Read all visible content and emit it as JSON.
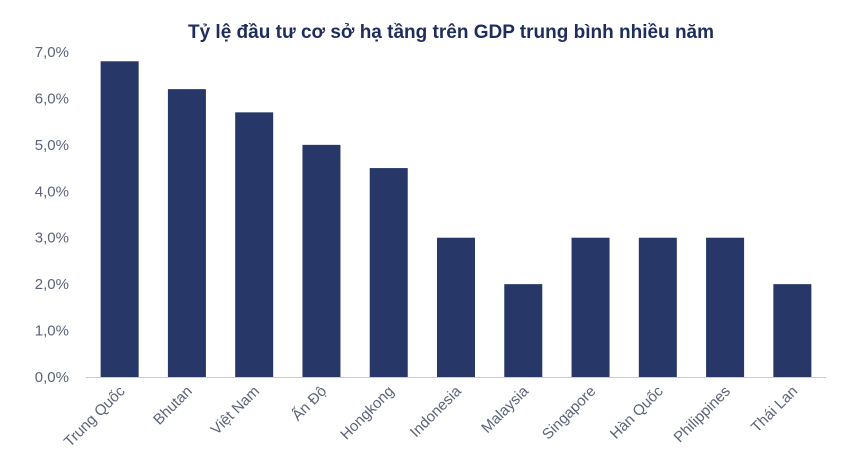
{
  "chart_data": {
    "type": "bar",
    "title": "Tỷ lệ đầu tư cơ sở hạ tầng trên GDP trung bình nhiều năm",
    "xlabel": "",
    "ylabel": "",
    "categories": [
      "Trung Quốc",
      "Bhutan",
      "Việt Nam",
      "Ấn Độ",
      "Hongkong",
      "Indonesia",
      "Malaysia",
      "Singapore",
      "Hàn Quốc",
      "Philippines",
      "Thái Lan"
    ],
    "values": [
      6.8,
      6.2,
      5.7,
      5.0,
      4.5,
      3.0,
      2.0,
      3.0,
      3.0,
      3.0,
      2.0
    ],
    "ylim": [
      0,
      7
    ],
    "yticks": [
      "0,0%",
      "1,0%",
      "2,0%",
      "3,0%",
      "4,0%",
      "5,0%",
      "6,0%",
      "7,0%"
    ],
    "grid": false,
    "legend": "none",
    "bar_color": "#263768",
    "axis_color": "#c9ccd3"
  }
}
